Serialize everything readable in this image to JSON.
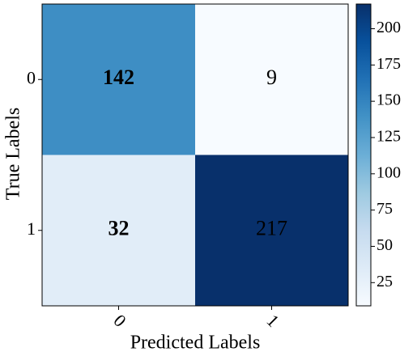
{
  "chart_data": {
    "type": "heatmap",
    "x_label": "Predicted Labels",
    "y_label": "True Labels",
    "x_categories": [
      "0",
      "1"
    ],
    "y_categories": [
      "0",
      "1"
    ],
    "values": [
      [
        142,
        9
      ],
      [
        32,
        217
      ]
    ],
    "colorscale": [
      "#f7fbff",
      "#deebf7",
      "#c6dbef",
      "#9ecae1",
      "#6baed6",
      "#4292c6",
      "#2171b5",
      "#08519c",
      "#08306b"
    ],
    "clim": [
      9,
      217
    ],
    "cticks": [
      25,
      50,
      75,
      100,
      125,
      150,
      175,
      200
    ]
  }
}
